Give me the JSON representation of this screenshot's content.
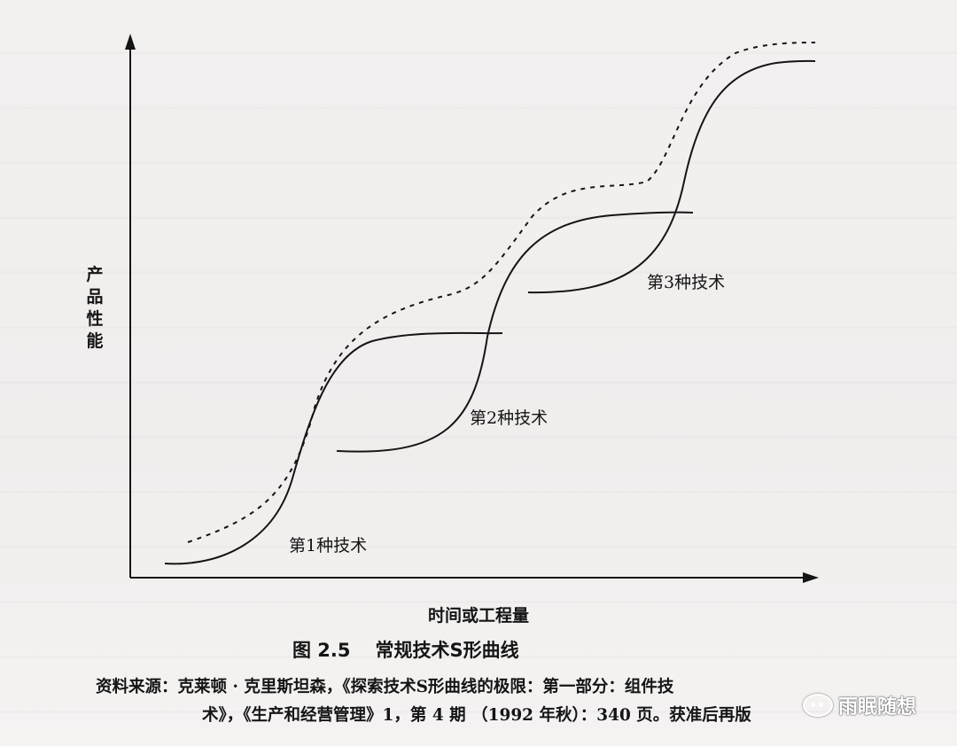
{
  "diagram": {
    "y_axis_label": "产品性能",
    "x_axis_label": "时间或工程量",
    "curves": [
      {
        "label": "第1种技术"
      },
      {
        "label": "第2种技术"
      },
      {
        "label": "第3种技术"
      }
    ]
  },
  "caption": {
    "figure_number": "图 2.5",
    "title": "常规技术S形曲线"
  },
  "source": {
    "line1": "资料来源：克莱顿 · 克里斯坦森，《探索技术S形曲线的极限：第一部分：组件技",
    "line2": "术》，《生产和经营管理》1，第 4 期 （1992 年秋）：340 页。获准后再版"
  },
  "watermark": {
    "icon": "chat-bubble-icon",
    "text": "雨眠随想"
  },
  "colors": {
    "ink": "#151515",
    "paper": "#f3f1f0"
  }
}
